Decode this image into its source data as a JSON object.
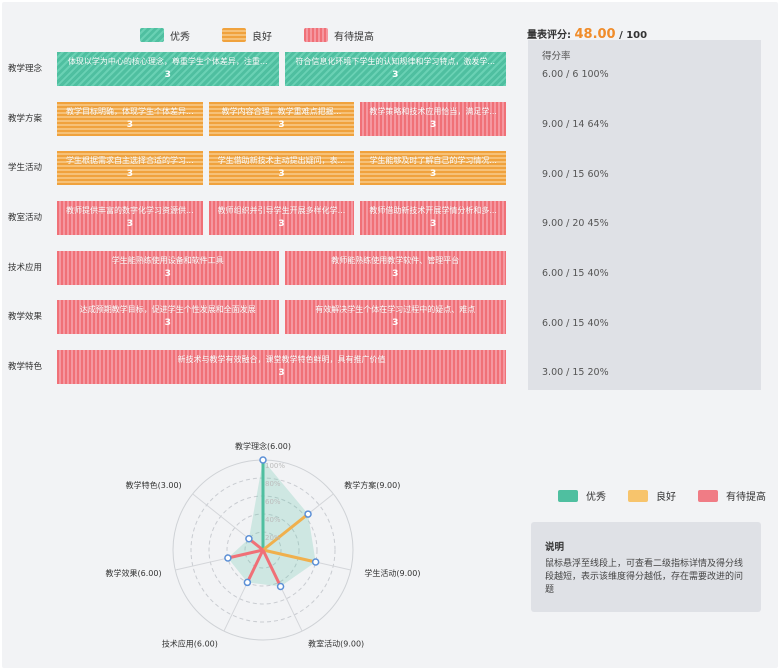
{
  "legend": {
    "excellent": "优秀",
    "good": "良好",
    "needs_improvement": "有待提高",
    "colors": {
      "excellent": "#4fbfa0",
      "good": "#f0a23d",
      "needs_improvement": "#f07077"
    }
  },
  "score": {
    "label": "量表评分:",
    "value": "48.00",
    "total": "/ 100"
  },
  "rate_header": "得分率",
  "dimensions": [
    {
      "name": "教学理念",
      "rate": "6.00 / 6   100%",
      "cells": [
        {
          "text": "体现以学为中心的核心理念，尊重学生个体差异，注重...",
          "value": "3",
          "level": "excellent"
        },
        {
          "text": "符合信息化环境下学生的认知规律和学习特点，激发学...",
          "value": "3",
          "level": "excellent"
        }
      ]
    },
    {
      "name": "教学方案",
      "rate": "9.00 / 14   64%",
      "cells": [
        {
          "text": "教学目标明确，体现学生个体差异...",
          "value": "3",
          "level": "good"
        },
        {
          "text": "教学内容合理，教学重难点把握...",
          "value": "3",
          "level": "good"
        },
        {
          "text": "教学策略和技术应用恰当，满足学...",
          "value": "3",
          "level": "needs_improvement"
        }
      ]
    },
    {
      "name": "学生活动",
      "rate": "9.00 / 15   60%",
      "cells": [
        {
          "text": "学生根据需求自主选择合适的学习...",
          "value": "3",
          "level": "good"
        },
        {
          "text": "学生借助新技术主动提出疑问，表...",
          "value": "3",
          "level": "good"
        },
        {
          "text": "学生能够及时了解自己的学习情况...",
          "value": "3",
          "level": "good"
        }
      ]
    },
    {
      "name": "教室活动",
      "rate": "9.00 / 20   45%",
      "cells": [
        {
          "text": "教师提供丰富的数字化学习资源供...",
          "value": "3",
          "level": "needs_improvement"
        },
        {
          "text": "教师组织并引导学生开展多样化学...",
          "value": "3",
          "level": "needs_improvement"
        },
        {
          "text": "教师借助新技术开展学情分析和多...",
          "value": "3",
          "level": "needs_improvement"
        }
      ]
    },
    {
      "name": "技术应用",
      "rate": "6.00 / 15   40%",
      "cells": [
        {
          "text": "学生能熟练使用设备和软件工具",
          "value": "3",
          "level": "needs_improvement"
        },
        {
          "text": "教师能熟练使用教学软件、管理平台",
          "value": "3",
          "level": "needs_improvement"
        }
      ]
    },
    {
      "name": "教学效果",
      "rate": "6.00 / 15   40%",
      "cells": [
        {
          "text": "达成预期教学目标，促进学生个性发展和全面发展",
          "value": "3",
          "level": "needs_improvement"
        },
        {
          "text": "有效解决学生个体在学习过程中的疑点、难点",
          "value": "3",
          "level": "needs_improvement"
        }
      ]
    },
    {
      "name": "教学特色",
      "rate": "3.00 / 15   20%",
      "cells": [
        {
          "text": "新技术与教学有效融合，课堂教学特色鲜明，具有推广价值",
          "value": "3",
          "level": "needs_improvement"
        }
      ]
    }
  ],
  "radar": {
    "axes": [
      "教学理念(6.00)",
      "教学方案(9.00)",
      "学生活动(9.00)",
      "教室活动(9.00)",
      "技术应用(6.00)",
      "教学效果(6.00)",
      "教学特色(3.00)"
    ],
    "values": [
      100,
      64,
      60,
      45,
      40,
      40,
      20
    ],
    "ring_labels": [
      "100%",
      "80%",
      "60%",
      "40%",
      "20%"
    ]
  },
  "note": {
    "title": "说明",
    "body": "鼠标悬浮至线段上，可查看二级指标详情及得分线段越短，表示该维度得分越低，存在需要改进的问题"
  }
}
